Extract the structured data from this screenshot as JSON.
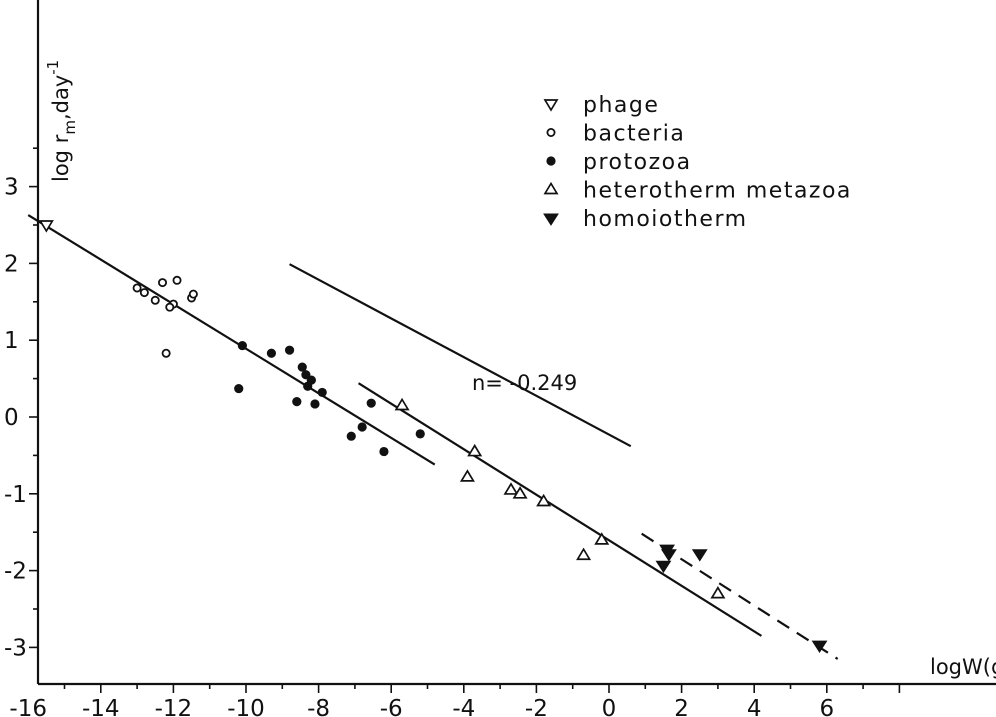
{
  "chart_data": {
    "type": "scatter",
    "xlabel": "logW(g",
    "ylabel": "log r",
    "ylabel_sub": "m",
    "ylabel_tail": ",day",
    "ylabel_sup": "-1",
    "xlim": [
      -16.9,
      8.7
    ],
    "ylim": [
      -3.5,
      3.6
    ],
    "x_ticks": [
      -16,
      -14,
      -12,
      -10,
      -8,
      -6,
      -4,
      -2,
      0,
      2,
      4,
      6
    ],
    "y_ticks": [
      -3,
      -2,
      -1,
      0,
      1,
      2,
      3
    ],
    "grid": false,
    "legend_position": "top-right",
    "series": [
      {
        "name": "phage",
        "marker": "triangle-down-open",
        "points": [
          [
            -15.5,
            2.5
          ]
        ]
      },
      {
        "name": "bacteria",
        "marker": "circle-open",
        "points": [
          [
            -13.0,
            1.68
          ],
          [
            -12.8,
            1.62
          ],
          [
            -12.5,
            1.52
          ],
          [
            -12.3,
            1.75
          ],
          [
            -11.9,
            1.78
          ],
          [
            -12.0,
            1.47
          ],
          [
            -12.1,
            1.43
          ],
          [
            -12.2,
            0.83
          ],
          [
            -11.5,
            1.55
          ],
          [
            -11.45,
            1.6
          ]
        ]
      },
      {
        "name": "protozoa",
        "marker": "circle-filled",
        "points": [
          [
            -10.2,
            0.37
          ],
          [
            -10.1,
            0.93
          ],
          [
            -9.3,
            0.83
          ],
          [
            -8.8,
            0.87
          ],
          [
            -8.6,
            0.2
          ],
          [
            -8.45,
            0.65
          ],
          [
            -8.35,
            0.55
          ],
          [
            -8.3,
            0.4
          ],
          [
            -8.2,
            0.48
          ],
          [
            -8.1,
            0.17
          ],
          [
            -7.9,
            0.32
          ],
          [
            -7.1,
            -0.25
          ],
          [
            -6.8,
            -0.13
          ],
          [
            -6.55,
            0.18
          ],
          [
            -6.2,
            -0.45
          ],
          [
            -5.2,
            -0.22
          ]
        ]
      },
      {
        "name": "heterotherm metazoa",
        "marker": "triangle-up-open",
        "points": [
          [
            -5.7,
            0.15
          ],
          [
            -3.7,
            -0.45
          ],
          [
            -3.9,
            -0.78
          ],
          [
            -2.7,
            -0.95
          ],
          [
            -2.45,
            -1.0
          ],
          [
            -1.8,
            -1.1
          ],
          [
            -0.2,
            -1.6
          ],
          [
            -0.7,
            -1.8
          ],
          [
            3.0,
            -2.3
          ]
        ]
      },
      {
        "name": "homoiotherm",
        "marker": "triangle-down-filled",
        "points": [
          [
            1.6,
            -1.72
          ],
          [
            1.65,
            -1.78
          ],
          [
            1.5,
            -1.93
          ],
          [
            2.5,
            -1.78
          ],
          [
            5.8,
            -2.97
          ]
        ]
      }
    ],
    "lines": [
      {
        "style": "solid",
        "from": [
          -16.0,
          2.63
        ],
        "to": [
          -4.8,
          -0.62
        ]
      },
      {
        "style": "solid",
        "from": [
          -6.9,
          0.44
        ],
        "to": [
          4.2,
          -2.85
        ]
      },
      {
        "style": "dashed",
        "from": [
          0.9,
          -1.52
        ],
        "to": [
          6.3,
          -3.15
        ]
      },
      {
        "style": "solid",
        "from": [
          -8.8,
          1.99
        ],
        "to": [
          0.6,
          -0.38
        ]
      }
    ],
    "annotations": [
      {
        "text": "n= -0.249",
        "at": [
          -3.5,
          0.65
        ]
      }
    ]
  }
}
